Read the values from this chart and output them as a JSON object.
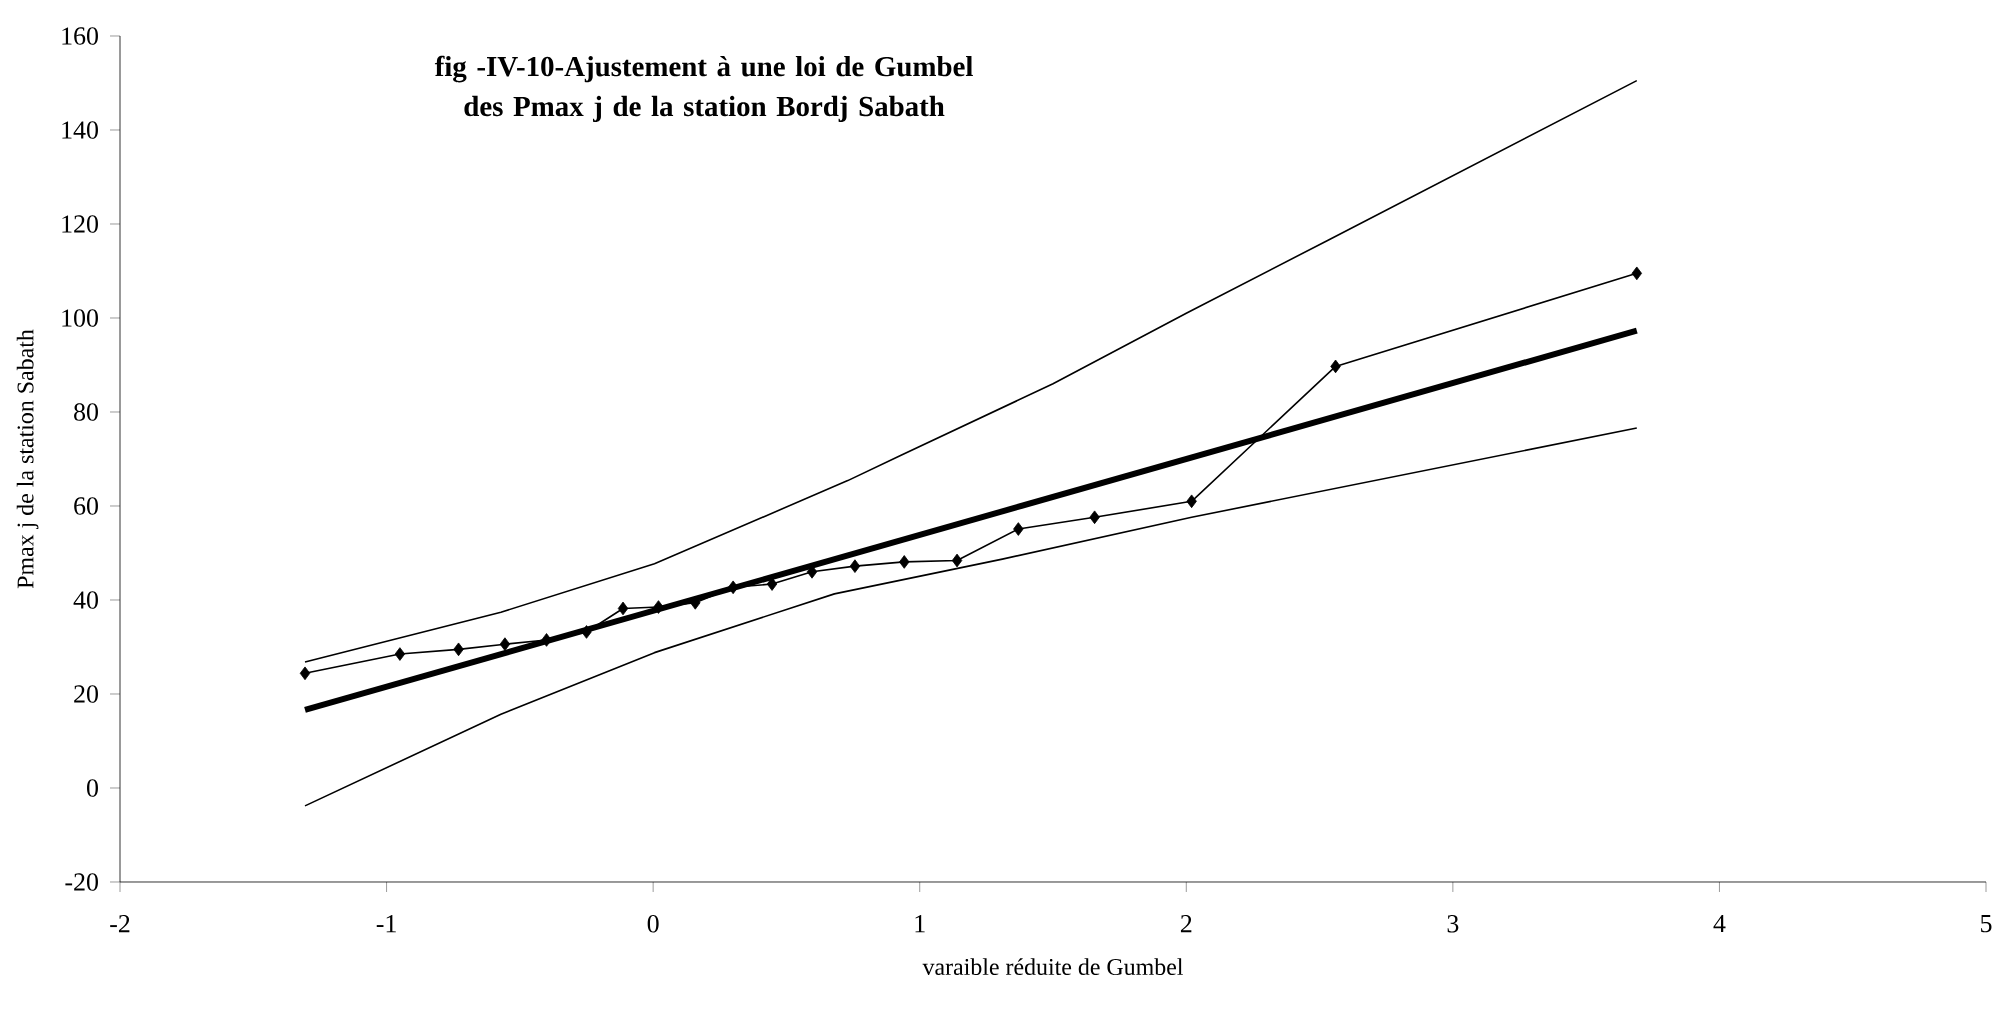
{
  "chart_data": {
    "type": "line",
    "title": "fig -IV-10-Ajustement à une loi de Gumbel des Pmax j de la station Bordj Sabath",
    "xlabel": "varaible réduite de Gumbel",
    "ylabel": "Pmax j de la station Sabath",
    "xlim": [
      -2,
      5
    ],
    "xticks": [
      -2,
      -1,
      0,
      1,
      2,
      3,
      4,
      5
    ],
    "ylim": [
      -20,
      160
    ],
    "yticks": [
      -20,
      0,
      20,
      40,
      60,
      80,
      100,
      120,
      140,
      160
    ],
    "grid": false,
    "line_style": "solid",
    "series": [
      {
        "color": "#000000",
        "marker": "diamond",
        "x": [
          -1.306,
          -0.95,
          -0.73,
          -0.556,
          -0.4,
          -0.25,
          -0.113,
          0.02,
          0.158,
          0.3,
          0.446,
          0.596,
          0.757,
          0.942,
          1.14,
          1.37,
          1.656,
          2.02,
          2.56,
          3.69
        ],
        "values": [
          24.4,
          28.5,
          29.5,
          30.6,
          31.5,
          33.2,
          38.2,
          38.5,
          39.4,
          42.7,
          43.4,
          46.0,
          47.2,
          48.1,
          48.4,
          55.1,
          57.6,
          61.0,
          89.7,
          109.5
        ]
      },
      {
        "color": "#000000",
        "marker": "none",
        "x": [
          -1.306,
          3.69
        ],
        "values": [
          16.6,
          97.3
        ]
      },
      {
        "color": "#000000",
        "marker": "none",
        "x": [
          -1.306,
          -0.571,
          0.005,
          0.73,
          0.93,
          1.5,
          2.0,
          2.53,
          3.69
        ],
        "values": [
          26.8,
          37.4,
          47.7,
          65.4,
          70.8,
          86,
          101,
          116.5,
          150.5
        ]
      },
      {
        "color": "#000000",
        "marker": "none",
        "x": [
          -1.306,
          -0.571,
          0.005,
          0.68,
          1.31,
          2.02,
          3.69
        ],
        "values": [
          -3.8,
          15.7,
          28.8,
          41.3,
          48.7,
          57.6,
          76.6
        ]
      }
    ]
  }
}
